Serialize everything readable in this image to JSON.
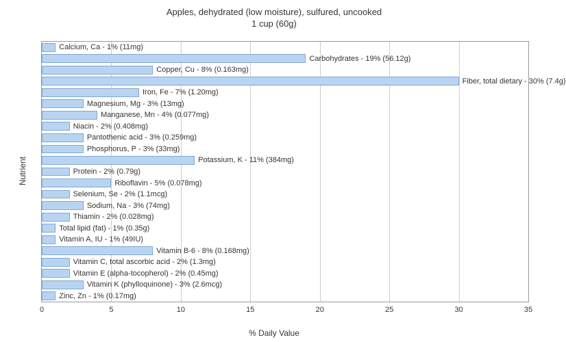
{
  "chart": {
    "type": "bar",
    "title_line1": "Apples, dehydrated (low moisture), sulfured, uncooked",
    "title_line2": "1 cup (60g)",
    "title_fontsize": 13,
    "ylabel": "Nutrient",
    "xlabel": "% Daily Value",
    "label_fontsize": 12,
    "xlim": [
      0,
      35
    ],
    "xtick_step": 5,
    "xticks": [
      0,
      5,
      10,
      15,
      20,
      25,
      30,
      35
    ],
    "bar_color": "#b9d4f1",
    "bar_border_color": "#7fa8d6",
    "grid_color": "#cccccc",
    "background_color": "#ffffff",
    "text_color": "#333333",
    "bar_label_fontsize": 11,
    "tick_fontsize": 11,
    "nutrients": [
      {
        "label": "Calcium, Ca - 1% (11mg)",
        "value": 1
      },
      {
        "label": "Carbohydrates - 19% (56.12g)",
        "value": 19
      },
      {
        "label": "Copper, Cu - 8% (0.163mg)",
        "value": 8
      },
      {
        "label": "Fiber, total dietary - 30% (7.4g)",
        "value": 30
      },
      {
        "label": "Iron, Fe - 7% (1.20mg)",
        "value": 7
      },
      {
        "label": "Magnesium, Mg - 3% (13mg)",
        "value": 3
      },
      {
        "label": "Manganese, Mn - 4% (0.077mg)",
        "value": 4
      },
      {
        "label": "Niacin - 2% (0.408mg)",
        "value": 2
      },
      {
        "label": "Pantothenic acid - 3% (0.259mg)",
        "value": 3
      },
      {
        "label": "Phosphorus, P - 3% (33mg)",
        "value": 3
      },
      {
        "label": "Potassium, K - 11% (384mg)",
        "value": 11
      },
      {
        "label": "Protein - 2% (0.79g)",
        "value": 2
      },
      {
        "label": "Riboflavin - 5% (0.078mg)",
        "value": 5
      },
      {
        "label": "Selenium, Se - 2% (1.1mcg)",
        "value": 2
      },
      {
        "label": "Sodium, Na - 3% (74mg)",
        "value": 3
      },
      {
        "label": "Thiamin - 2% (0.028mg)",
        "value": 2
      },
      {
        "label": "Total lipid (fat) - 1% (0.35g)",
        "value": 1
      },
      {
        "label": "Vitamin A, IU - 1% (49IU)",
        "value": 1
      },
      {
        "label": "Vitamin B-6 - 8% (0.168mg)",
        "value": 8
      },
      {
        "label": "Vitamin C, total ascorbic acid - 2% (1.3mg)",
        "value": 2
      },
      {
        "label": "Vitamin E (alpha-tocopherol) - 2% (0.45mg)",
        "value": 2
      },
      {
        "label": "Vitamin K (phylloquinone) - 3% (2.6mcg)",
        "value": 3
      },
      {
        "label": "Zinc, Zn - 1% (0.17mg)",
        "value": 1
      }
    ]
  }
}
